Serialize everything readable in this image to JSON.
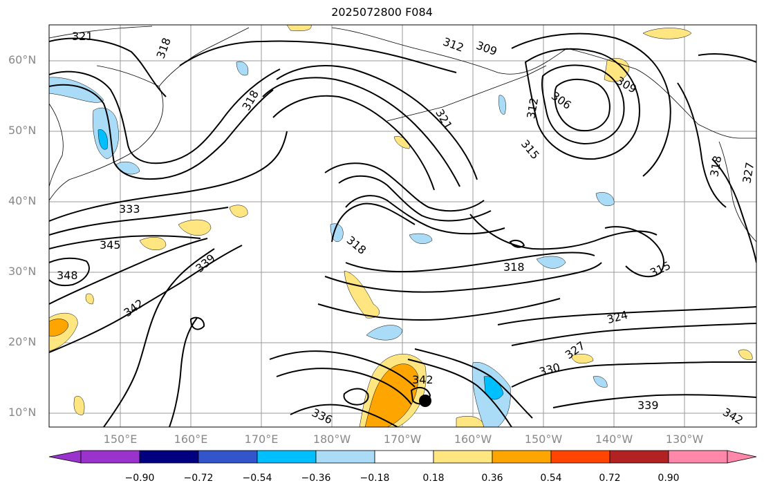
{
  "title": "2025072800 F084",
  "lat_labels": [
    "60°N",
    "50°N",
    "40°N",
    "30°N",
    "20°N",
    "10°N"
  ],
  "lon_labels": [
    "150°E",
    "160°E",
    "170°E",
    "180°W",
    "170°W",
    "160°W",
    "150°W",
    "140°W",
    "130°W"
  ],
  "contour_labels": [
    "321",
    "318",
    "312",
    "309",
    "306",
    "312",
    "315",
    "321",
    "309",
    "318",
    "327",
    "333",
    "345",
    "348",
    "339",
    "342",
    "318",
    "318",
    "315",
    "324",
    "327",
    "330",
    "339",
    "342",
    "336",
    "342",
    "318"
  ],
  "colorbar": {
    "tick_labels": [
      "−0.90",
      "−0.72",
      "−0.54",
      "−0.36",
      "−0.18",
      "0.18",
      "0.36",
      "0.54",
      "0.72",
      "0.90"
    ],
    "colors": [
      "#9933cc",
      "#000080",
      "#3355cc",
      "#00bfff",
      "#aadcf8",
      "#ffffff",
      "#ffe680",
      "#ffa500",
      "#ff4500",
      "#b22222",
      "#ff88aa"
    ]
  },
  "colors": {
    "positive_light": "#ffe680",
    "positive_mid": "#ffa500",
    "negative_light": "#aadcf8",
    "negative_mid": "#00bfff"
  }
}
